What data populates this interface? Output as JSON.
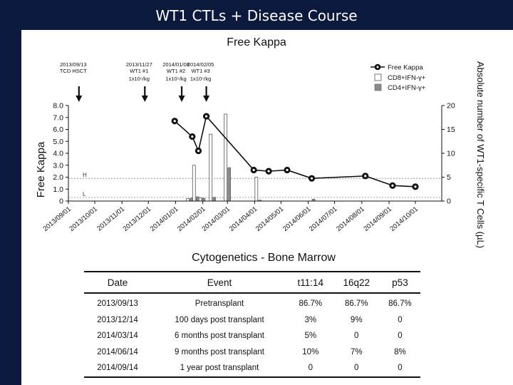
{
  "slide_title": "WT1 CTLs + Disease Course",
  "chart_data": {
    "type": "line+bar",
    "title": "Free Kappa",
    "ylabel": "Free Kappa",
    "y2label": "Absolute number of WT1-specific T Cells (µL)",
    "ylim": [
      0,
      8
    ],
    "y2lim": [
      0,
      20
    ],
    "yticks": [
      "0",
      "1.0",
      "2.0",
      "3.0",
      "4.0",
      "5.0",
      "6.0",
      "7.0",
      "8.0"
    ],
    "y2ticks": [
      "0",
      "5",
      "10",
      "15",
      "20"
    ],
    "x_start": "2013/09/01",
    "x_end": "2014/10/31",
    "xticks": [
      "2013/09/01",
      "2013/10/01",
      "2013/11/01",
      "2013/12/01",
      "2014/01/01",
      "2014/02/01",
      "2014/03/01",
      "2014/04/01",
      "2014/05/01",
      "2014/06/01",
      "2014/07/01",
      "2014/08/01",
      "2014/09/01",
      "2014/10/01"
    ],
    "reference_lines": [
      {
        "label": "H",
        "value": 1.9
      },
      {
        "label": "L",
        "value": 0.3
      }
    ],
    "events": [
      {
        "date": "2013/09/13",
        "line1": "2013/09/13",
        "line2": "TCD HSCT",
        "line3": ""
      },
      {
        "date": "2013/11/27",
        "line1": "2013/11/27",
        "line2": "WT1 #1",
        "line3": "1x10⁵/kg"
      },
      {
        "date": "2014/01/08",
        "line1": "2014/01/08",
        "line2": "WT1 #2",
        "line3": "1x10⁵/kg"
      },
      {
        "date": "2014/02/05",
        "line1": "2014/02/05",
        "line2": "WT1 #3",
        "line3": "1x10⁵/kg"
      }
    ],
    "series": [
      {
        "name": "Free Kappa",
        "kind": "line",
        "axis": "left",
        "points": [
          {
            "date": "2013/12/31",
            "value": 6.7
          },
          {
            "date": "2014/01/20",
            "value": 5.4
          },
          {
            "date": "2014/01/27",
            "value": 4.2
          },
          {
            "date": "2014/02/05",
            "value": 7.1
          },
          {
            "date": "2014/03/31",
            "value": 2.6
          },
          {
            "date": "2014/04/17",
            "value": 2.5
          },
          {
            "date": "2014/05/08",
            "value": 2.6
          },
          {
            "date": "2014/06/05",
            "value": 1.9
          },
          {
            "date": "2014/08/05",
            "value": 2.1
          },
          {
            "date": "2014/09/05",
            "value": 1.3
          },
          {
            "date": "2014/10/01",
            "value": 1.2
          }
        ]
      },
      {
        "name": "CD8+IFN-γ+",
        "kind": "bar",
        "axis": "right",
        "points": [
          {
            "date": "2014/01/17",
            "value": 0.5
          },
          {
            "date": "2014/01/24",
            "value": 7.5
          },
          {
            "date": "2014/01/31",
            "value": 0.7
          },
          {
            "date": "2014/02/12",
            "value": 14
          },
          {
            "date": "2014/03/01",
            "value": 18.2
          },
          {
            "date": "2014/04/05",
            "value": 5
          }
        ]
      },
      {
        "name": "CD4+IFN-γ+",
        "kind": "bar",
        "axis": "right",
        "points": [
          {
            "date": "2014/01/17",
            "value": 0.6
          },
          {
            "date": "2014/01/24",
            "value": 0.9
          },
          {
            "date": "2014/01/31",
            "value": 0.6
          },
          {
            "date": "2014/02/12",
            "value": 0.8
          },
          {
            "date": "2014/03/01",
            "value": 7
          },
          {
            "date": "2014/04/05",
            "value": 0.2
          },
          {
            "date": "2014/06/05",
            "value": 0.4
          }
        ]
      }
    ]
  },
  "cytogenetics": {
    "title": "Cytogenetics - Bone Marrow",
    "columns": [
      "Date",
      "Event",
      "t11:14",
      "16q22",
      "p53"
    ],
    "rows": [
      [
        "2013/09/13",
        "Pretransplant",
        "86.7%",
        "86.7%",
        "86.7%"
      ],
      [
        "2013/12/14",
        "100 days post transplant",
        "3%",
        "9%",
        "0"
      ],
      [
        "2014/03/14",
        "6 months post transplant",
        "5%",
        "0",
        "0"
      ],
      [
        "2014/06/14",
        "9 months post transplant",
        "10%",
        "7%",
        "8%"
      ],
      [
        "2014/09/14",
        "1 year post transplant",
        "0",
        "0",
        "0"
      ]
    ]
  }
}
